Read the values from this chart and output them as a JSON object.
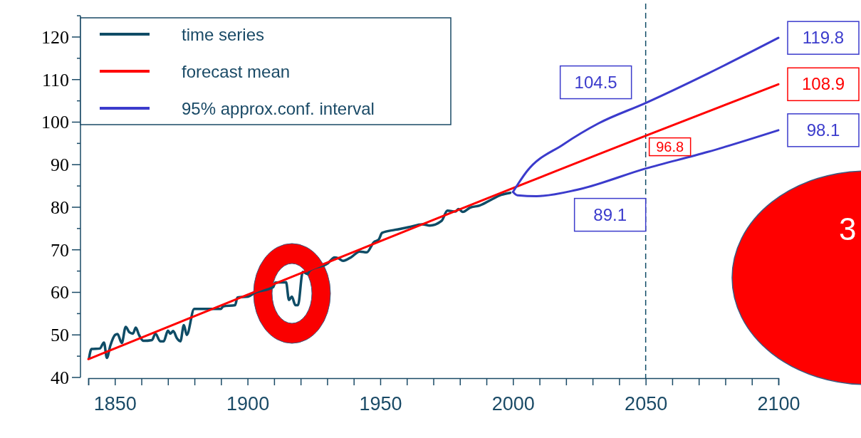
{
  "chart_data": {
    "type": "line",
    "xlim": [
      1840,
      2100
    ],
    "ylim": [
      40,
      125
    ],
    "xticks": [
      {
        "value": 1840,
        "label": null
      },
      1850,
      {
        "value": 1860,
        "label": null
      },
      {
        "value": 1870,
        "label": null
      },
      {
        "value": 1880,
        "label": null
      },
      {
        "value": 1890,
        "label": null
      },
      1900,
      {
        "value": 1910,
        "label": null
      },
      {
        "value": 1920,
        "label": null
      },
      {
        "value": 1930,
        "label": null
      },
      {
        "value": 1940,
        "label": null
      },
      1950,
      {
        "value": 1960,
        "label": null
      },
      {
        "value": 1970,
        "label": null
      },
      {
        "value": 1980,
        "label": null
      },
      {
        "value": 1990,
        "label": null
      },
      2000,
      {
        "value": 2010,
        "label": null
      },
      {
        "value": 2020,
        "label": null
      },
      {
        "value": 2030,
        "label": null
      },
      {
        "value": 2040,
        "label": null
      },
      2050,
      {
        "value": 2060,
        "label": null
      },
      {
        "value": 2070,
        "label": null
      },
      {
        "value": 2080,
        "label": null
      },
      {
        "value": 2090,
        "label": null
      },
      2100
    ],
    "yticks": [
      40,
      {
        "value": 45,
        "label": null
      },
      50,
      {
        "value": 55,
        "label": null
      },
      60,
      {
        "value": 65,
        "label": null
      },
      70,
      {
        "value": 75,
        "label": null
      },
      80,
      {
        "value": 85,
        "label": null
      },
      90,
      {
        "value": 95,
        "label": null
      },
      100,
      {
        "value": 105,
        "label": null
      },
      110,
      {
        "value": 115,
        "label": null
      },
      120,
      {
        "value": 125,
        "label": null
      }
    ],
    "legend": "top left",
    "series": [
      {
        "name": "time series",
        "color": "#0f4c66",
        "x": [
          1840.3,
          1841.2,
          1844.3,
          1845.9,
          1847,
          1848.3,
          1850.1,
          1851,
          1852.6,
          1854.1,
          1855.5,
          1856.8,
          1857.9,
          1859.1,
          1860.8,
          1864,
          1865.3,
          1867.1,
          1868.4,
          1870,
          1870.9,
          1872,
          1873.4,
          1874.7,
          1876,
          1877.1,
          1879.9,
          1889.9,
          1890.8,
          1895.3,
          1896.2,
          1900.2,
          1902.4,
          1909.6,
          1910.5,
          1914.5,
          1915.6,
          1916.7,
          1918,
          1919,
          1920.8,
          1922.6,
          1923.4,
          1930.2,
          1932.8,
          1934.2,
          1936,
          1939.1,
          1942.2,
          1944.9,
          1947.6,
          1949.4,
          1950.7,
          1955.6,
          1960.6,
          1965.9,
          1968.6,
          1973.1,
          1975.3,
          1978.4,
          1979.5,
          1981.1,
          1983.8,
          1987.4,
          1991.9,
          1995.5,
          1999
        ],
        "values": [
          44.6,
          46.7,
          46.8,
          48.2,
          44.6,
          47.5,
          50.0,
          50.2,
          48.1,
          51.9,
          50.6,
          50.3,
          51.7,
          50.0,
          48.6,
          48.8,
          50.3,
          48.5,
          48.5,
          51.0,
          50.3,
          50.9,
          49.2,
          48.5,
          52.3,
          50.0,
          56.1,
          56.1,
          56.7,
          57.0,
          58.8,
          59.0,
          59.8,
          61.2,
          62.3,
          62.4,
          58.2,
          59.0,
          57.0,
          57.0,
          64.8,
          64.3,
          65.1,
          66.8,
          68.2,
          68.0,
          67.4,
          68.3,
          69.6,
          69.4,
          71.8,
          72.4,
          74.0,
          74.7,
          75.3,
          76.0,
          75.7,
          76.8,
          79.2,
          79.0,
          79.6,
          78.9,
          79.9,
          80.4,
          81.8,
          82.9,
          83.4
        ]
      },
      {
        "name": "forecast mean",
        "color": "#ff0000",
        "x": [
          1840,
          2050,
          2100
        ],
        "values": [
          44.3,
          96.8,
          108.9
        ],
        "value_labels": [
          null,
          "96.8",
          "108.9"
        ]
      },
      {
        "name": "95% approx.conf. interval",
        "color": "#3b3bcc",
        "x": [
          2000,
          2005.3,
          2018.8,
          2032.2,
          2050,
          2073.4,
          2100
        ],
        "values": [
          83.6,
          88.5,
          94.7,
          99.7,
          104.5,
          111.4,
          119.8
        ],
        "value_labels": [
          null,
          null,
          null,
          null,
          "104.5",
          null,
          "119.8"
        ]
      },
      {
        "color": "#3b3bcc",
        "x": [
          2000,
          2001.7,
          2008.9,
          2024.1,
          2050,
          2073.4,
          2100
        ],
        "values": [
          83.6,
          82.8,
          82.6,
          84.1,
          89.1,
          93.0,
          98.1
        ],
        "value_labels": [
          null,
          null,
          null,
          null,
          "89.1",
          null,
          "98.1"
        ]
      }
    ],
    "ref_lines": [
      {
        "axis": "x",
        "value": 2050,
        "color": "#0f4c66",
        "line_style": "dashed"
      }
    ],
    "annotations": [
      "3"
    ]
  }
}
